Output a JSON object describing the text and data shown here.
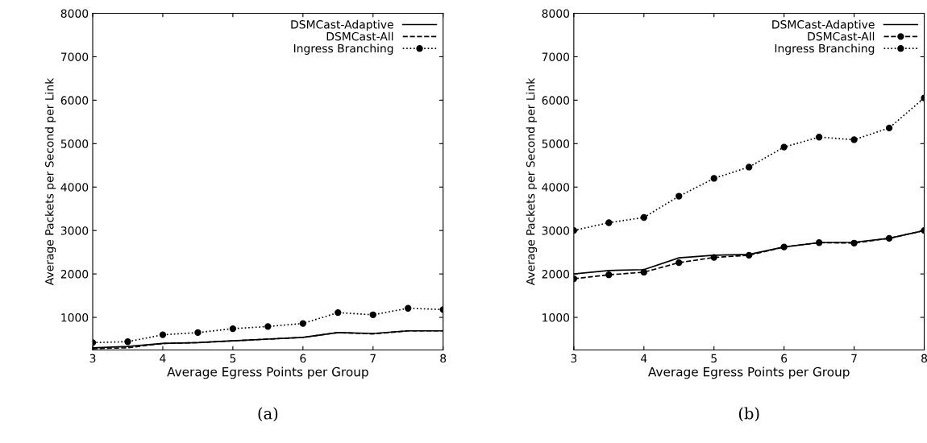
{
  "chart_data": [
    {
      "type": "line",
      "xlabel": "Average Egress Points per Group",
      "ylabel": "Average Packets per Second per Link",
      "annotations": [
        "(a)"
      ],
      "x": [
        3,
        3.5,
        4,
        4.5,
        5,
        5.5,
        6,
        6.5,
        7,
        7.5,
        8
      ],
      "xlim": [
        3,
        8
      ],
      "xticks": [
        3,
        4,
        5,
        6,
        7,
        8
      ],
      "ylim": [
        250,
        8000
      ],
      "yticks": [
        1000,
        2000,
        3000,
        4000,
        5000,
        6000,
        7000,
        8000
      ],
      "legend": "top right",
      "series": [
        {
          "name": "DSMCast-Adaptive",
          "color": "#000000",
          "line_style": "solid",
          "marker": "none",
          "values": [
            300,
            330,
            400,
            420,
            460,
            500,
            540,
            650,
            630,
            690,
            690
          ]
        },
        {
          "name": "DSMCast-All",
          "color": "#000000",
          "line_style": "dashed",
          "marker": "none",
          "values": [
            280,
            300,
            400,
            420,
            460,
            500,
            540,
            650,
            620,
            690,
            690
          ]
        },
        {
          "name": "Ingress Branching",
          "color": "#000000",
          "line_style": "dotted",
          "marker": "circle",
          "values": [
            420,
            440,
            600,
            650,
            740,
            790,
            860,
            1110,
            1060,
            1210,
            1180
          ]
        }
      ]
    },
    {
      "type": "line",
      "xlabel": "Average Egress Points per Group",
      "ylabel": "Average Packets per Second per Link",
      "annotations": [
        "(b)"
      ],
      "x": [
        3,
        3.5,
        4,
        4.5,
        5,
        5.5,
        6,
        6.5,
        7,
        7.5,
        8
      ],
      "xlim": [
        3,
        8
      ],
      "xticks": [
        3,
        4,
        5,
        6,
        7,
        8
      ],
      "ylim": [
        250,
        8000
      ],
      "yticks": [
        1000,
        2000,
        3000,
        4000,
        5000,
        6000,
        7000,
        8000
      ],
      "legend": "top right",
      "series": [
        {
          "name": "DSMCast-Adaptive",
          "color": "#000000",
          "line_style": "solid",
          "marker": "none",
          "values": [
            2000,
            2080,
            2100,
            2370,
            2430,
            2450,
            2620,
            2720,
            2730,
            2820,
            3000
          ]
        },
        {
          "name": "DSMCast-All",
          "color": "#000000",
          "line_style": "dashed",
          "marker": "circle",
          "values": [
            1890,
            1980,
            2040,
            2260,
            2380,
            2430,
            2620,
            2720,
            2710,
            2820,
            3000
          ]
        },
        {
          "name": "Ingress Branching",
          "color": "#000000",
          "line_style": "dotted",
          "marker": "circle",
          "values": [
            3000,
            3180,
            3300,
            3790,
            4200,
            4460,
            4920,
            5150,
            5090,
            5360,
            6050
          ]
        }
      ]
    }
  ]
}
